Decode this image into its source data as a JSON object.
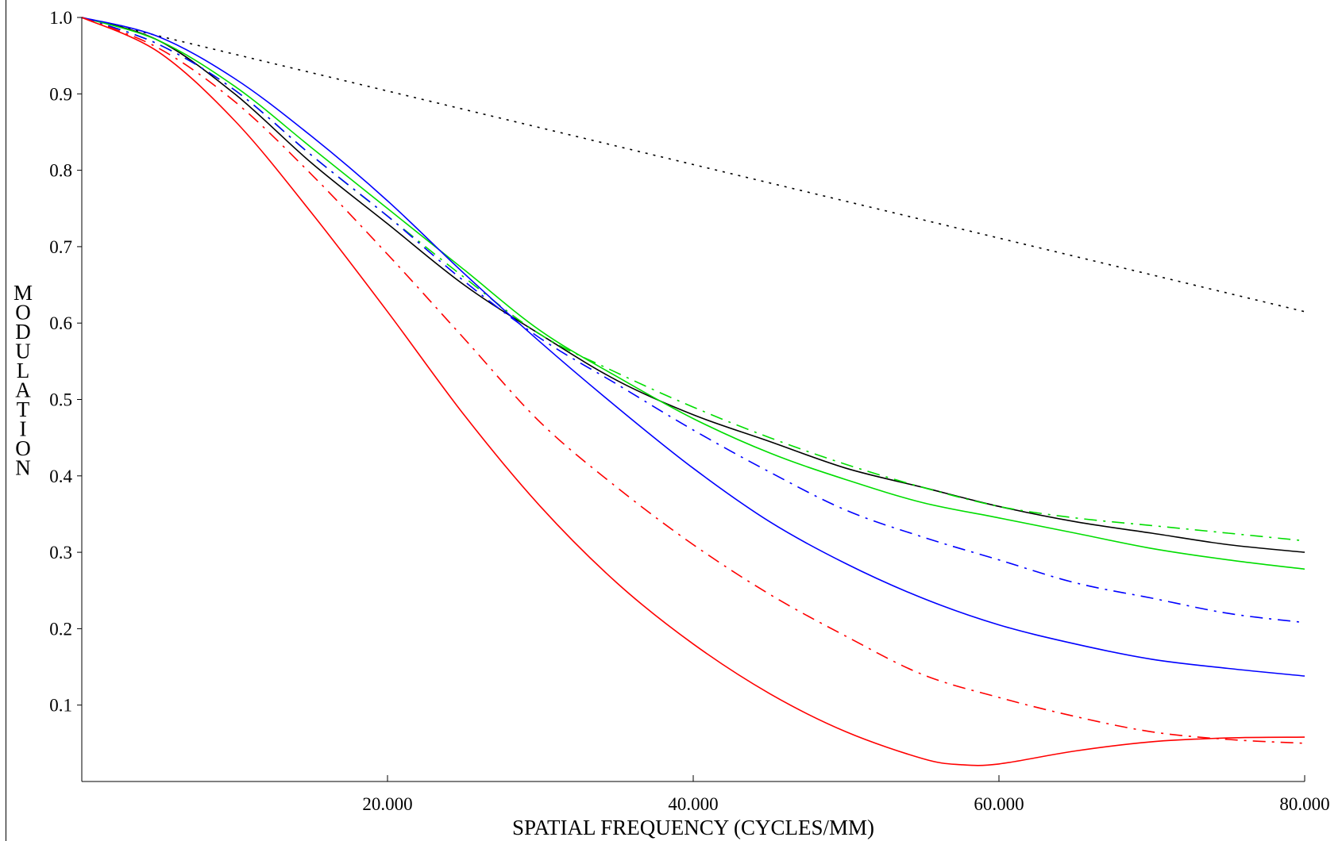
{
  "chart_data": {
    "type": "line",
    "title": "",
    "xlabel": "SPATIAL FREQUENCY (CYCLES/MM)",
    "ylabel": "MODULATION",
    "xlim": [
      0,
      80
    ],
    "ylim": [
      0,
      1.0
    ],
    "x_ticks": [
      20,
      40,
      60,
      80
    ],
    "x_tick_labels": [
      "20.000",
      "40.000",
      "60.000",
      "80.000"
    ],
    "y_ticks": [
      0.1,
      0.2,
      0.3,
      0.4,
      0.5,
      0.6,
      0.7,
      0.8,
      0.9,
      1.0
    ],
    "y_tick_labels": [
      "0.1",
      "0.2",
      "0.3",
      "0.4",
      "0.5",
      "0.6",
      "0.7",
      "0.8",
      "0.9",
      "1.0"
    ],
    "grid": false,
    "legend": "none",
    "series": [
      {
        "color": "#000000",
        "dash": "dotted",
        "points": [
          [
            0,
            1.0
          ],
          [
            80,
            0.615
          ]
        ]
      },
      {
        "color": "#000000",
        "dash": "solid",
        "points": [
          [
            0,
            1.0
          ],
          [
            5,
            0.97
          ],
          [
            10,
            0.9
          ],
          [
            15,
            0.81
          ],
          [
            20,
            0.73
          ],
          [
            25,
            0.65
          ],
          [
            30,
            0.585
          ],
          [
            35,
            0.525
          ],
          [
            40,
            0.48
          ],
          [
            45,
            0.445
          ],
          [
            50,
            0.41
          ],
          [
            55,
            0.385
          ],
          [
            60,
            0.36
          ],
          [
            65,
            0.34
          ],
          [
            70,
            0.325
          ],
          [
            75,
            0.31
          ],
          [
            80,
            0.3
          ]
        ]
      },
      {
        "color": "#00dd00",
        "dash": "solid",
        "points": [
          [
            0,
            1.0
          ],
          [
            5,
            0.97
          ],
          [
            10,
            0.91
          ],
          [
            15,
            0.83
          ],
          [
            20,
            0.75
          ],
          [
            25,
            0.67
          ],
          [
            30,
            0.59
          ],
          [
            35,
            0.53
          ],
          [
            40,
            0.475
          ],
          [
            45,
            0.43
          ],
          [
            50,
            0.395
          ],
          [
            55,
            0.365
          ],
          [
            60,
            0.345
          ],
          [
            65,
            0.325
          ],
          [
            70,
            0.305
          ],
          [
            75,
            0.29
          ],
          [
            80,
            0.278
          ]
        ]
      },
      {
        "color": "#00dd00",
        "dash": "dashdot",
        "points": [
          [
            0,
            1.0
          ],
          [
            5,
            0.965
          ],
          [
            10,
            0.905
          ],
          [
            15,
            0.82
          ],
          [
            20,
            0.74
          ],
          [
            25,
            0.66
          ],
          [
            30,
            0.585
          ],
          [
            35,
            0.535
          ],
          [
            40,
            0.49
          ],
          [
            45,
            0.45
          ],
          [
            50,
            0.415
          ],
          [
            55,
            0.385
          ],
          [
            60,
            0.36
          ],
          [
            65,
            0.345
          ],
          [
            70,
            0.335
          ],
          [
            75,
            0.325
          ],
          [
            80,
            0.315
          ]
        ]
      },
      {
        "color": "#0000ff",
        "dash": "solid",
        "points": [
          [
            0,
            1.0
          ],
          [
            5,
            0.975
          ],
          [
            10,
            0.92
          ],
          [
            15,
            0.845
          ],
          [
            20,
            0.76
          ],
          [
            25,
            0.665
          ],
          [
            30,
            0.575
          ],
          [
            35,
            0.49
          ],
          [
            40,
            0.41
          ],
          [
            45,
            0.34
          ],
          [
            50,
            0.285
          ],
          [
            55,
            0.24
          ],
          [
            60,
            0.205
          ],
          [
            65,
            0.18
          ],
          [
            70,
            0.16
          ],
          [
            75,
            0.148
          ],
          [
            80,
            0.138
          ]
        ]
      },
      {
        "color": "#0000ff",
        "dash": "dashdot",
        "points": [
          [
            0,
            1.0
          ],
          [
            5,
            0.965
          ],
          [
            10,
            0.905
          ],
          [
            15,
            0.82
          ],
          [
            20,
            0.74
          ],
          [
            25,
            0.655
          ],
          [
            30,
            0.58
          ],
          [
            35,
            0.52
          ],
          [
            40,
            0.46
          ],
          [
            45,
            0.405
          ],
          [
            50,
            0.355
          ],
          [
            55,
            0.32
          ],
          [
            60,
            0.29
          ],
          [
            65,
            0.26
          ],
          [
            70,
            0.24
          ],
          [
            75,
            0.22
          ],
          [
            80,
            0.208
          ]
        ]
      },
      {
        "color": "#ff0000",
        "dash": "dashdot",
        "points": [
          [
            0,
            1.0
          ],
          [
            5,
            0.96
          ],
          [
            10,
            0.89
          ],
          [
            15,
            0.795
          ],
          [
            20,
            0.69
          ],
          [
            25,
            0.58
          ],
          [
            30,
            0.47
          ],
          [
            35,
            0.385
          ],
          [
            40,
            0.31
          ],
          [
            45,
            0.245
          ],
          [
            50,
            0.19
          ],
          [
            55,
            0.14
          ],
          [
            60,
            0.11
          ],
          [
            65,
            0.085
          ],
          [
            70,
            0.065
          ],
          [
            75,
            0.055
          ],
          [
            80,
            0.05
          ]
        ]
      },
      {
        "color": "#ff0000",
        "dash": "solid",
        "points": [
          [
            0,
            1.0
          ],
          [
            5,
            0.955
          ],
          [
            10,
            0.865
          ],
          [
            15,
            0.745
          ],
          [
            20,
            0.615
          ],
          [
            25,
            0.48
          ],
          [
            30,
            0.36
          ],
          [
            35,
            0.26
          ],
          [
            40,
            0.18
          ],
          [
            45,
            0.115
          ],
          [
            50,
            0.065
          ],
          [
            55,
            0.03
          ],
          [
            57.5,
            0.022
          ],
          [
            60,
            0.023
          ],
          [
            65,
            0.04
          ],
          [
            70,
            0.052
          ],
          [
            75,
            0.057
          ],
          [
            80,
            0.058
          ]
        ]
      }
    ]
  }
}
